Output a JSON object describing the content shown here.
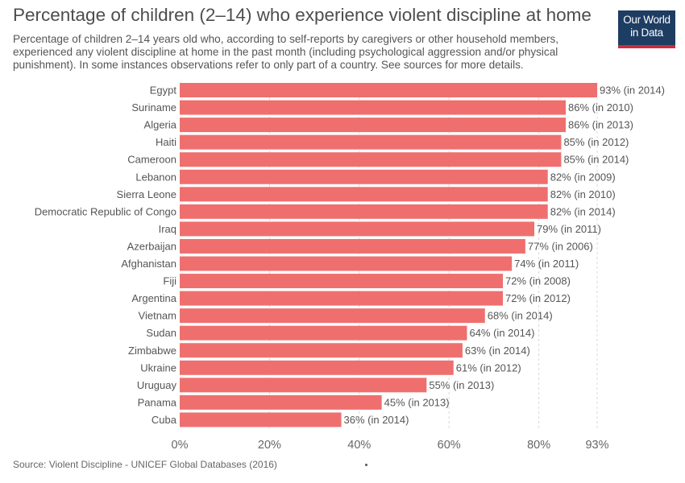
{
  "header": {
    "title": "Percentage of children (2–14) who experience violent discipline at home",
    "subtitle": "Percentage of children 2–14 years old who, according to self-reports by caregivers or other household members, experienced any violent discipline at home in the past month (including psychological aggression and/or physical punishment). In some instances observations refer to only part of a country. See sources for more details."
  },
  "logo": {
    "line1": "Our World",
    "line2": "in Data"
  },
  "footer": {
    "source": "Source: Violent Discipline - UNICEF Global Databases (2016)"
  },
  "colors": {
    "bar": "#ef6f6f",
    "grid": "#d9d9d9"
  },
  "chart_data": {
    "type": "bar",
    "orientation": "horizontal",
    "categories": [
      "Egypt",
      "Suriname",
      "Algeria",
      "Haiti",
      "Cameroon",
      "Lebanon",
      "Sierra Leone",
      "Democratic Republic of Congo",
      "Iraq",
      "Azerbaijan",
      "Afghanistan",
      "Fiji",
      "Argentina",
      "Vietnam",
      "Sudan",
      "Zimbabwe",
      "Ukraine",
      "Uruguay",
      "Panama",
      "Cuba"
    ],
    "values": [
      93,
      86,
      86,
      85,
      85,
      82,
      82,
      82,
      79,
      77,
      74,
      72,
      72,
      68,
      64,
      63,
      61,
      55,
      45,
      36
    ],
    "labels": [
      "93% (in 2014)",
      "86% (in 2010)",
      "86% (in 2013)",
      "85% (in 2012)",
      "85% (in 2014)",
      "82% (in 2009)",
      "82% (in 2010)",
      "82% (in 2014)",
      "79% (in 2011)",
      "77% (in 2006)",
      "74% (in 2011)",
      "72% (in 2008)",
      "72% (in 2012)",
      "68% (in 2014)",
      "64% (in 2014)",
      "63% (in 2014)",
      "61% (in 2012)",
      "55% (in 2013)",
      "45% (in 2013)",
      "36% (in 2014)"
    ],
    "xticks": [
      0,
      20,
      40,
      60,
      80,
      93
    ],
    "xtick_labels": [
      "0%",
      "20%",
      "40%",
      "60%",
      "80%",
      "93%"
    ],
    "xlim": [
      0,
      93
    ],
    "grid": true
  }
}
